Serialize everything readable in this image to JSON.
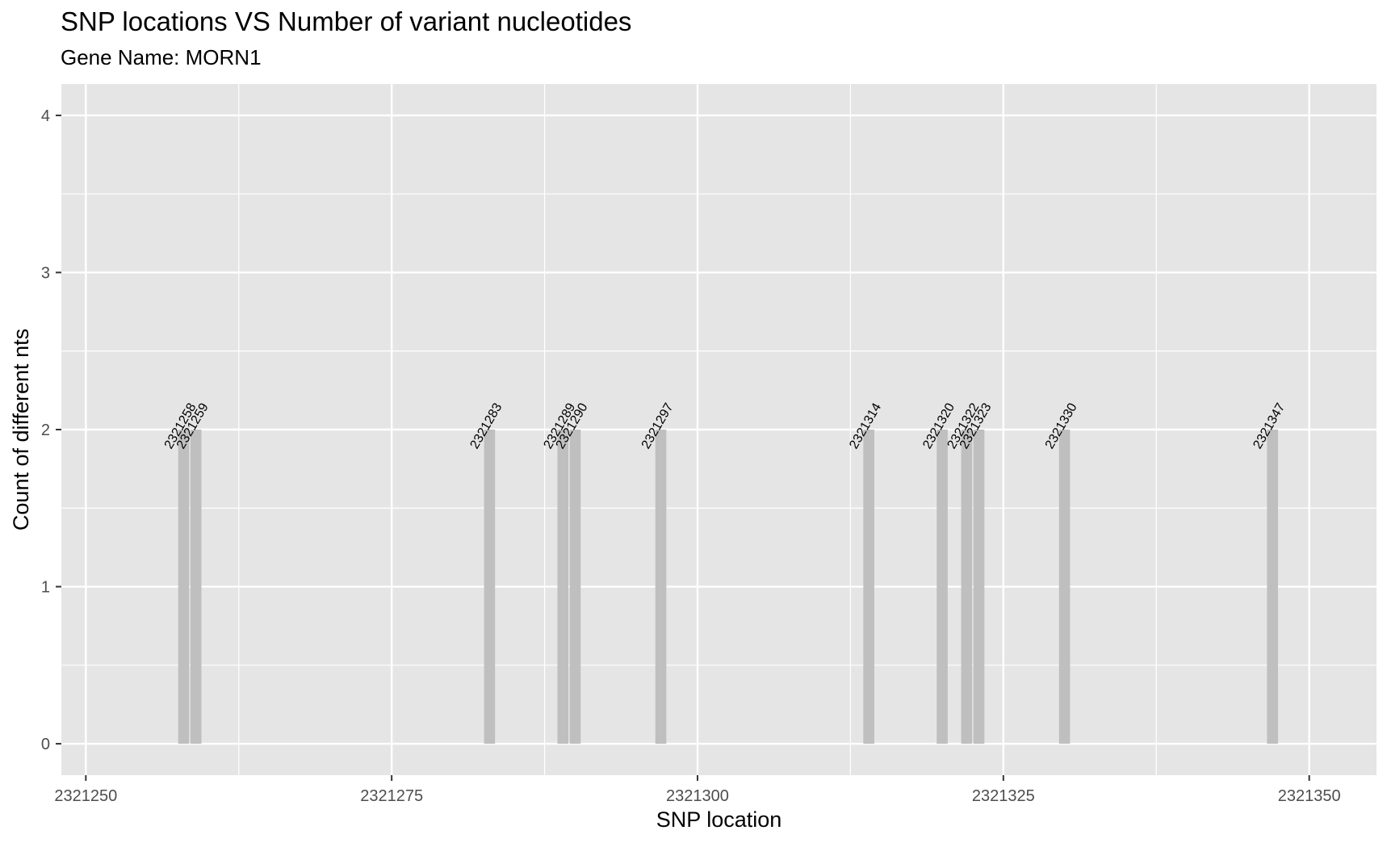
{
  "chart_data": {
    "type": "bar",
    "title": "SNP locations VS Number of variant nucleotides",
    "subtitle": "Gene Name: MORN1",
    "xlabel": "SNP location",
    "ylabel": "Count of different nts",
    "x": [
      2321258,
      2321259,
      2321283,
      2321289,
      2321290,
      2321297,
      2321314,
      2321320,
      2321322,
      2321323,
      2321330,
      2321347
    ],
    "values": [
      2,
      2,
      2,
      2,
      2,
      2,
      2,
      2,
      2,
      2,
      2,
      2
    ],
    "bar_labels": [
      "2321258",
      "2321259",
      "2321283",
      "2321289",
      "2321290",
      "2321297",
      "2321314",
      "2321320",
      "2321322",
      "2321323",
      "2321330",
      "2321347"
    ],
    "xlim": [
      2321248,
      2321355.5
    ],
    "ylim": [
      -0.2,
      4.2
    ],
    "x_ticks": [
      2321250,
      2321275,
      2321300,
      2321325,
      2321350
    ],
    "x_tick_labels": [
      "2321250",
      "2321275",
      "2321300",
      "2321325",
      "2321350"
    ],
    "y_ticks": [
      0,
      1,
      2,
      3,
      4
    ],
    "y_tick_labels": [
      "0",
      "1",
      "2",
      "3",
      "4"
    ],
    "grid": true,
    "colors": {
      "panel_background": "#e5e5e5",
      "grid_line": "#ffffff",
      "bar_fill": "#bfbfbf",
      "tick_text": "#4d4d4d"
    }
  }
}
